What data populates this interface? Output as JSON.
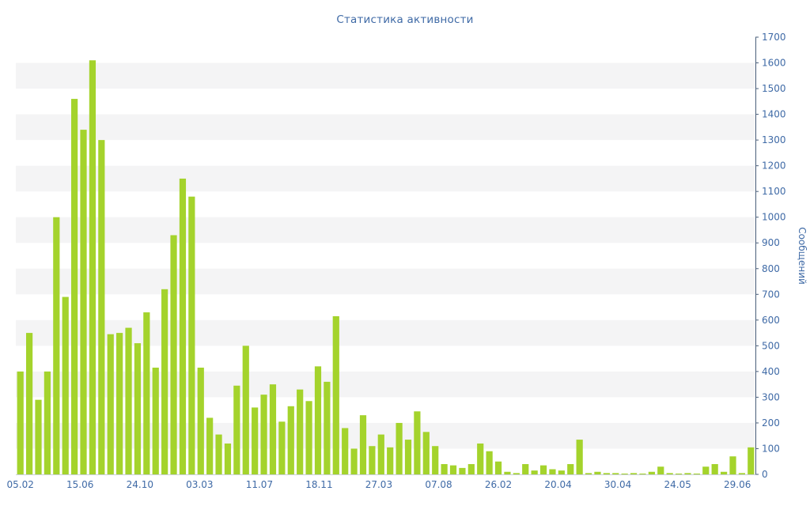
{
  "page": {
    "background_color": "#ffffff"
  },
  "chart_data": {
    "type": "bar",
    "title": "Статистика активности",
    "ylabel": "Сообщений",
    "xlabel": "",
    "ylim": [
      0,
      1700
    ],
    "y_tick_step": 100,
    "y_axis_side": "right",
    "grid": "striped-horizontal-bands",
    "legend": "none",
    "x_tick_labels": [
      "05.02",
      "15.06",
      "24.10",
      "03.03",
      "11.07",
      "18.11",
      "27.03",
      "07.08",
      "26.02",
      "20.04",
      "30.04",
      "24.05",
      "29.06"
    ],
    "values": [
      400,
      550,
      290,
      400,
      1000,
      690,
      1460,
      1340,
      1610,
      1300,
      545,
      550,
      570,
      510,
      630,
      415,
      720,
      930,
      1150,
      1080,
      415,
      220,
      155,
      120,
      345,
      500,
      260,
      310,
      350,
      205,
      265,
      330,
      285,
      420,
      360,
      615,
      180,
      100,
      230,
      110,
      155,
      105,
      200,
      135,
      245,
      165,
      110,
      40,
      35,
      25,
      40,
      120,
      90,
      50,
      10,
      5,
      40,
      15,
      35,
      20,
      15,
      40,
      135,
      5,
      10,
      5,
      5,
      3,
      5,
      3,
      10,
      30,
      5,
      3,
      5,
      3,
      30,
      40,
      10,
      70,
      5,
      105
    ],
    "colors": {
      "bar": "#a4d32c",
      "text": "#3f6aa6",
      "axis_line": "#4a5f7a",
      "baseline": "#c9d0d9",
      "stripe": "#f4f4f5",
      "background": "#ffffff"
    }
  }
}
